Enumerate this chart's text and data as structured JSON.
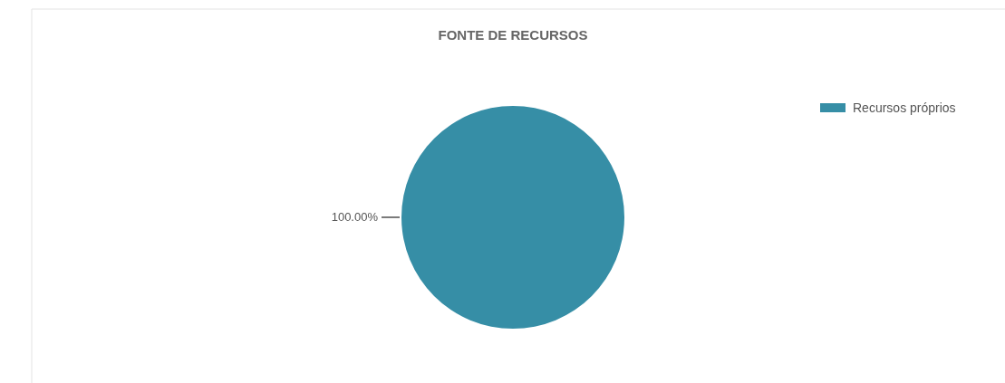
{
  "chart_data": {
    "type": "pie",
    "title": "FONTE DE RECURSOS",
    "categories": [
      "Recursos próprios"
    ],
    "values": [
      100
    ],
    "colors": [
      "#368ea6"
    ],
    "value_labels": [
      "100.00%"
    ],
    "legend": "top right"
  }
}
